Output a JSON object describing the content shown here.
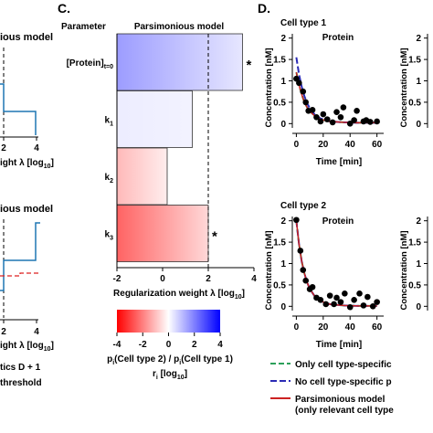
{
  "panels": {
    "left": {
      "title_top": "ious model",
      "title_bottom": "ious model",
      "xlabel_top": "ight λ [log",
      "xlabel_top_sub": "10",
      "xlabel_top_end": "]",
      "xlabel_bottom": "ight λ [log",
      "xlabel_bottom_sub": "10",
      "xlabel_bottom_end": "]",
      "ticks": [
        "2",
        "4"
      ],
      "legend": [
        "tics D + 1",
        "threshold"
      ]
    },
    "c": {
      "letter": "C.",
      "param_header": "Parameter",
      "model_header": "Parsimonious model",
      "star": "*",
      "colorbar": {
        "ticks": [
          "-4",
          "-2",
          "0",
          "2",
          "4"
        ],
        "label_line1_a": "p",
        "label_line1_a_sub": "i",
        "label_line1_b": "(Cell type 2) / p",
        "label_line1_b_sub": "i",
        "label_line1_c": "(Cell type 1)",
        "label_line2_a": "r",
        "label_line2_a_sub": "i",
        "label_line2_b": " [log",
        "label_line2_b_sub": "10",
        "label_line2_c": "]"
      }
    },
    "d": {
      "letter": "D.",
      "cell1": "Cell type 1",
      "cell2": "Cell type 2",
      "protein1": "Protein",
      "protein2": "Protein",
      "ylabel": "Concentration [nM]",
      "xlabel": "Time [min]",
      "legend": [
        {
          "text": "Only cell type-specific",
          "color": "#2ca05a",
          "dash": "6,3"
        },
        {
          "text": "No cell type-specific p",
          "color": "#2b2bb5",
          "dash": "7,3"
        },
        {
          "text": "Parsimonious model",
          "color": "#cc2222",
          "dash": ""
        },
        {
          "text": "(only relevant cell type",
          "color": "",
          "dash": ""
        }
      ]
    }
  },
  "chart_data": [
    {
      "type": "bar",
      "categories": [
        "[Protein]t=0",
        "k1",
        "k2",
        "k3"
      ],
      "category_labels": [
        {
          "main": "[Protein]",
          "sub": "t=0"
        },
        {
          "main": "k",
          "sub": "1"
        },
        {
          "main": "k",
          "sub": "2"
        },
        {
          "main": "k",
          "sub": "3"
        }
      ],
      "orientation": "horizontal",
      "values": [
        3.5,
        1.3,
        0.2,
        2.0
      ],
      "base": -2,
      "ratios": [
        1.5,
        0.1,
        -1.0,
        -2.5
      ],
      "significant": [
        true,
        false,
        false,
        true
      ],
      "threshold": 2,
      "xlim": [
        -2,
        4
      ],
      "xticks": [
        -2,
        0,
        2,
        4
      ],
      "xlabel": "Regularization weight λ [log",
      "xlabel_sub": "10",
      "xlabel_end": "]",
      "title": "Parsimonious model",
      "colors": {
        "negative": "#ff0000",
        "zero": "#ffffff",
        "positive": "#0000ff"
      }
    },
    {
      "type": "scatter",
      "title": "Protein",
      "subtitle": "Cell type 1",
      "xlabel": "Time [min]",
      "ylabel": "Concentration [nM]",
      "xlim": [
        -3,
        65
      ],
      "ylim": [
        -0.1,
        2.1
      ],
      "xticks": [
        0,
        20,
        40,
        60
      ],
      "yticks": [
        0,
        0.5,
        1,
        1.5,
        2
      ],
      "points": [
        [
          0,
          1.05
        ],
        [
          2,
          0.95
        ],
        [
          5,
          0.75
        ],
        [
          7,
          0.5
        ],
        [
          9,
          0.3
        ],
        [
          12,
          0.32
        ],
        [
          15,
          0.15
        ],
        [
          18,
          0.05
        ],
        [
          20,
          0.22
        ],
        [
          23,
          0.1
        ],
        [
          27,
          0.03
        ],
        [
          30,
          0.27
        ],
        [
          33,
          0.15
        ],
        [
          35,
          0.38
        ],
        [
          40,
          0.0
        ],
        [
          43,
          0.08
        ],
        [
          45,
          0.3
        ],
        [
          50,
          0.05
        ],
        [
          52,
          0.08
        ],
        [
          55,
          0.04
        ],
        [
          60,
          0.05
        ]
      ],
      "series": [
        {
          "name": "Only cell type-specific",
          "x": [
            0,
            2,
            4,
            6,
            8,
            10,
            14,
            18,
            25,
            35,
            45,
            60
          ],
          "values": [
            1.2,
            0.9,
            0.68,
            0.5,
            0.38,
            0.29,
            0.17,
            0.1,
            0.05,
            0.03,
            0.02,
            0.02
          ]
        },
        {
          "name": "No cell type-specific p",
          "x": [
            0,
            2,
            4,
            6,
            8,
            10,
            14,
            18,
            25,
            35,
            45,
            60
          ],
          "values": [
            1.55,
            1.15,
            0.86,
            0.64,
            0.48,
            0.36,
            0.2,
            0.12,
            0.05,
            0.03,
            0.02,
            0.02
          ]
        },
        {
          "name": "Parsimonious model",
          "x": [
            0,
            2,
            4,
            6,
            8,
            10,
            14,
            18,
            25,
            35,
            45,
            60
          ],
          "values": [
            1.2,
            0.9,
            0.68,
            0.5,
            0.38,
            0.29,
            0.17,
            0.1,
            0.05,
            0.03,
            0.02,
            0.02
          ]
        }
      ]
    },
    {
      "type": "scatter",
      "title": "Protein",
      "subtitle": "Cell type 2",
      "xlabel": "Time [min]",
      "ylabel": "Concentration [nM]",
      "xlim": [
        -3,
        65
      ],
      "ylim": [
        -0.1,
        2.1
      ],
      "xticks": [
        0,
        20,
        40,
        60
      ],
      "yticks": [
        0,
        0.5,
        1,
        1.5,
        2
      ],
      "points": [
        [
          0,
          2.02
        ],
        [
          3,
          1.3
        ],
        [
          5,
          0.85
        ],
        [
          7,
          0.6
        ],
        [
          10,
          0.4
        ],
        [
          12,
          0.45
        ],
        [
          15,
          0.2
        ],
        [
          18,
          0.15
        ],
        [
          22,
          0.05
        ],
        [
          25,
          0.25
        ],
        [
          28,
          0.05
        ],
        [
          30,
          0.2
        ],
        [
          33,
          0.1
        ],
        [
          36,
          0.3
        ],
        [
          40,
          -0.02
        ],
        [
          43,
          0.15
        ],
        [
          47,
          0.3
        ],
        [
          50,
          0.02
        ],
        [
          53,
          0.22
        ],
        [
          57,
          0.0
        ],
        [
          60,
          0.1
        ]
      ],
      "series": [
        {
          "name": "Only cell type-specific",
          "x": [
            0,
            2,
            4,
            6,
            8,
            10,
            14,
            18,
            25,
            35,
            45,
            60
          ],
          "values": [
            2.0,
            1.45,
            1.05,
            0.77,
            0.56,
            0.41,
            0.22,
            0.12,
            0.05,
            0.02,
            0.01,
            0.01
          ]
        },
        {
          "name": "No cell type-specific p",
          "x": [
            0,
            2,
            4,
            6,
            8,
            10,
            14,
            18,
            25,
            35,
            45,
            60
          ],
          "values": [
            2.0,
            1.45,
            1.05,
            0.77,
            0.56,
            0.41,
            0.22,
            0.12,
            0.05,
            0.02,
            0.01,
            0.01
          ]
        },
        {
          "name": "Parsimonious model",
          "x": [
            0,
            2,
            4,
            6,
            8,
            10,
            14,
            18,
            25,
            35,
            45,
            60
          ],
          "values": [
            2.0,
            1.45,
            1.05,
            0.77,
            0.56,
            0.41,
            0.22,
            0.12,
            0.05,
            0.02,
            0.01,
            0.01
          ]
        }
      ]
    }
  ]
}
